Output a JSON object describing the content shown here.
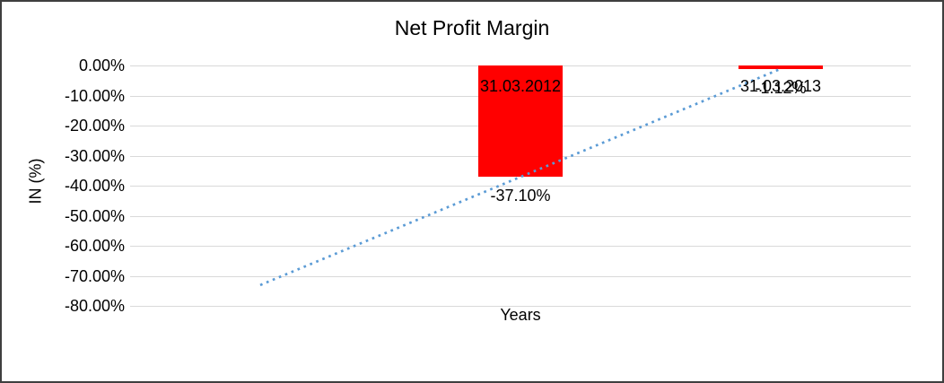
{
  "chart_data": {
    "type": "bar",
    "title": "Net Profit Margin",
    "xlabel": "Years",
    "ylabel": "IN (%)",
    "categories": [
      "31.03.2012",
      "31.03.2013"
    ],
    "values": [
      -37.1,
      -1.12
    ],
    "data_labels": [
      "-37.10%",
      "-1.12%"
    ],
    "ytick_labels": [
      "0.00%",
      "-10.00%",
      "-20.00%",
      "-30.00%",
      "-40.00%",
      "-50.00%",
      "-60.00%",
      "-70.00%",
      "-80.00%"
    ],
    "ylim": [
      0,
      -80
    ],
    "grid": true,
    "legend": "none",
    "bar_color": "#ff0000",
    "gridline_color": "#d9d9d9",
    "trendline": {
      "type": "linear",
      "style": "dotted",
      "color": "#5b9bd5"
    }
  }
}
